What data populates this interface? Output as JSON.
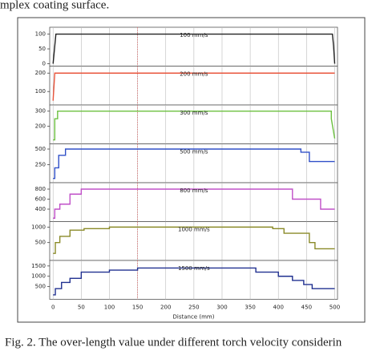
{
  "header_text": "mplex coating surface.",
  "caption": "Fig. 2. The over-length value under different torch velocity considerin",
  "chart_data": [
    {
      "type": "line",
      "xlim": [
        -6,
        505
      ],
      "xticks": [
        0,
        50,
        100,
        150,
        200,
        250,
        300,
        350,
        400,
        450,
        500
      ],
      "highlight_x": 150,
      "ylim": [
        0,
        115
      ],
      "yticks": [
        0,
        50,
        100
      ],
      "x": [
        0,
        3,
        5,
        496,
        498,
        500
      ],
      "series": [
        {
          "name": "100 mm/s",
          "color": "#222222",
          "values": [
            0,
            60,
            100,
            100,
            60,
            0
          ]
        }
      ]
    },
    {
      "type": "line",
      "xlim": [
        -6,
        505
      ],
      "xticks": [
        0,
        50,
        100,
        150,
        200,
        250,
        300,
        350,
        400,
        450,
        500
      ],
      "highlight_x": 150,
      "ylim": [
        40,
        225
      ],
      "yticks": [
        100,
        200
      ],
      "x": [
        0,
        2,
        3,
        500
      ],
      "series": [
        {
          "name": "200 mm/s",
          "color": "#e8553c",
          "values": [
            50,
            150,
            200,
            200
          ]
        }
      ]
    },
    {
      "type": "line",
      "xlim": [
        -6,
        505
      ],
      "xticks": [
        0,
        50,
        100,
        150,
        200,
        250,
        300,
        350,
        400,
        450,
        500
      ],
      "highlight_x": 150,
      "ylim": [
        100,
        325
      ],
      "yticks": [
        200,
        300
      ],
      "x": [
        0,
        3,
        3,
        8,
        8,
        494,
        494,
        500
      ],
      "series": [
        {
          "name": "300 mm/s",
          "color": "#6cc040",
          "values": [
            110,
            110,
            250,
            250,
            300,
            300,
            250,
            120
          ]
        }
      ]
    },
    {
      "type": "line",
      "xlim": [
        -6,
        505
      ],
      "xticks": [
        0,
        50,
        100,
        150,
        200,
        250,
        300,
        350,
        400,
        450,
        500
      ],
      "highlight_x": 150,
      "ylim": [
        0,
        545
      ],
      "yticks": [
        250,
        500
      ],
      "x": [
        0,
        3,
        3,
        10,
        10,
        22,
        22,
        440,
        440,
        455,
        455,
        500
      ],
      "series": [
        {
          "name": "500 mm/s",
          "color": "#3050c8",
          "values": [
            30,
            30,
            200,
            200,
            400,
            400,
            500,
            500,
            450,
            450,
            300,
            300
          ]
        }
      ]
    },
    {
      "type": "line",
      "xlim": [
        -6,
        505
      ],
      "xticks": [
        0,
        50,
        100,
        150,
        200,
        250,
        300,
        350,
        400,
        450,
        500
      ],
      "highlight_x": 150,
      "ylim": [
        200,
        880
      ],
      "yticks": [
        400,
        600,
        800
      ],
      "x": [
        0,
        3,
        3,
        12,
        12,
        30,
        30,
        50,
        50,
        425,
        425,
        475,
        475,
        500
      ],
      "series": [
        {
          "name": "800 mm/s",
          "color": "#c050c8",
          "values": [
            220,
            220,
            400,
            400,
            500,
            500,
            700,
            700,
            800,
            800,
            600,
            600,
            400,
            400
          ]
        }
      ]
    },
    {
      "type": "line",
      "xlim": [
        -6,
        505
      ],
      "xticks": [
        0,
        50,
        100,
        150,
        200,
        250,
        300,
        350,
        400,
        450,
        500
      ],
      "highlight_x": 150,
      "ylim": [
        0,
        1100
      ],
      "yticks": [
        500,
        1000
      ],
      "x": [
        0,
        4,
        4,
        12,
        12,
        30,
        30,
        55,
        55,
        100,
        100,
        390,
        390,
        410,
        410,
        455,
        455,
        465,
        465,
        500
      ],
      "series": [
        {
          "name": "1000 mm/s",
          "color": "#8a8a28",
          "values": [
            150,
            150,
            500,
            500,
            700,
            700,
            900,
            900,
            950,
            950,
            1000,
            1000,
            950,
            950,
            800,
            800,
            500,
            500,
            300,
            300
          ]
        }
      ]
    },
    {
      "type": "line",
      "xlim": [
        -6,
        505
      ],
      "xticks": [
        0,
        50,
        100,
        150,
        200,
        250,
        300,
        350,
        400,
        450,
        500
      ],
      "highlight_x": 150,
      "ylim": [
        0,
        1650
      ],
      "yticks": [
        500,
        1000,
        1500
      ],
      "xlabel": "Distance (mm)",
      "x": [
        0,
        4,
        4,
        15,
        15,
        30,
        30,
        50,
        50,
        100,
        100,
        150,
        150,
        360,
        360,
        400,
        400,
        425,
        425,
        445,
        445,
        460,
        460,
        500
      ],
      "series": [
        {
          "name": "1500 mm/s",
          "color": "#203090",
          "values": [
            100,
            100,
            400,
            400,
            700,
            700,
            900,
            900,
            1200,
            1200,
            1300,
            1300,
            1400,
            1400,
            1200,
            1200,
            1000,
            1000,
            800,
            800,
            600,
            600,
            400,
            400
          ]
        }
      ]
    }
  ]
}
